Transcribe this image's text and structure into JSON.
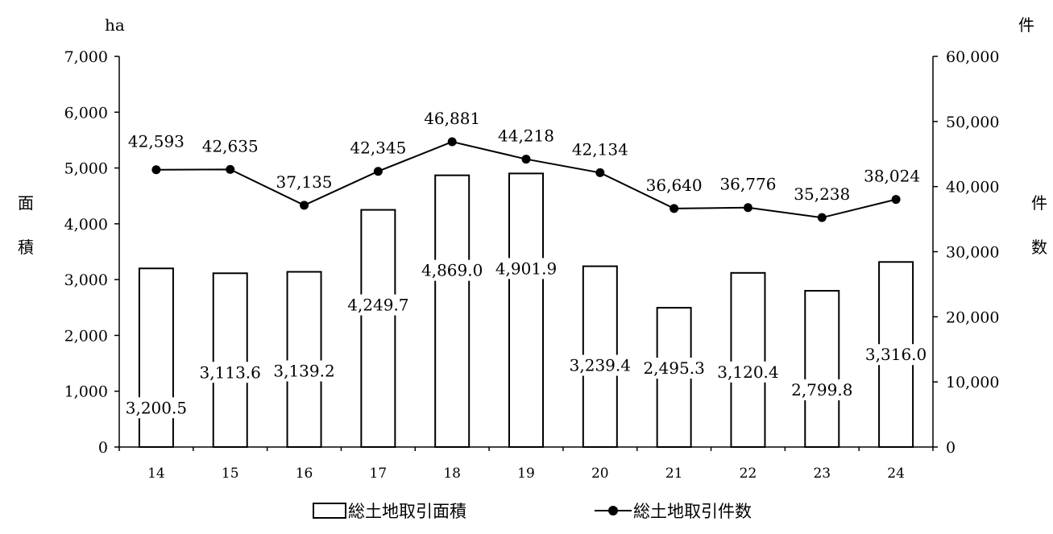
{
  "chart_data": {
    "type": "bar",
    "categories": [
      "14",
      "15",
      "16",
      "17",
      "18",
      "19",
      "20",
      "21",
      "22",
      "23",
      "24"
    ],
    "series": [
      {
        "name": "総土地取引面積",
        "type": "bar",
        "axis": "left",
        "values": [
          3200.5,
          3113.6,
          3139.2,
          4249.7,
          4869.0,
          4901.9,
          3239.4,
          2495.3,
          3120.4,
          2799.8,
          3316.0
        ],
        "labels": [
          "3,200.5",
          "3,113.6",
          "3,139.2",
          "4,249.7",
          "4,869.0",
          "4,901.9",
          "3,239.4",
          "2,495.3",
          "3,120.4",
          "2,799.8",
          "3,316.0"
        ]
      },
      {
        "name": "総土地取引件数",
        "type": "line",
        "axis": "right",
        "values": [
          42593,
          42635,
          37135,
          42345,
          46881,
          44218,
          42134,
          36640,
          36776,
          35238,
          38024
        ],
        "labels": [
          "42,593",
          "42,635",
          "37,135",
          "42,345",
          "46,881",
          "44,218",
          "42,134",
          "36,640",
          "36,776",
          "35,238",
          "38,024"
        ]
      }
    ],
    "left_axis": {
      "unit": "ha",
      "title_chars": [
        "面",
        "積"
      ],
      "ylim": [
        0,
        7000
      ],
      "ticks": [
        "0",
        "1,000",
        "2,000",
        "3,000",
        "4,000",
        "5,000",
        "6,000",
        "7,000"
      ]
    },
    "right_axis": {
      "unit": "件",
      "title_chars": [
        "件",
        "数"
      ],
      "ylim": [
        0,
        60000
      ],
      "ticks": [
        "0",
        "10,000",
        "20,000",
        "30,000",
        "40,000",
        "50,000",
        "60,000"
      ]
    },
    "grid": false,
    "legend_position": "bottom"
  }
}
